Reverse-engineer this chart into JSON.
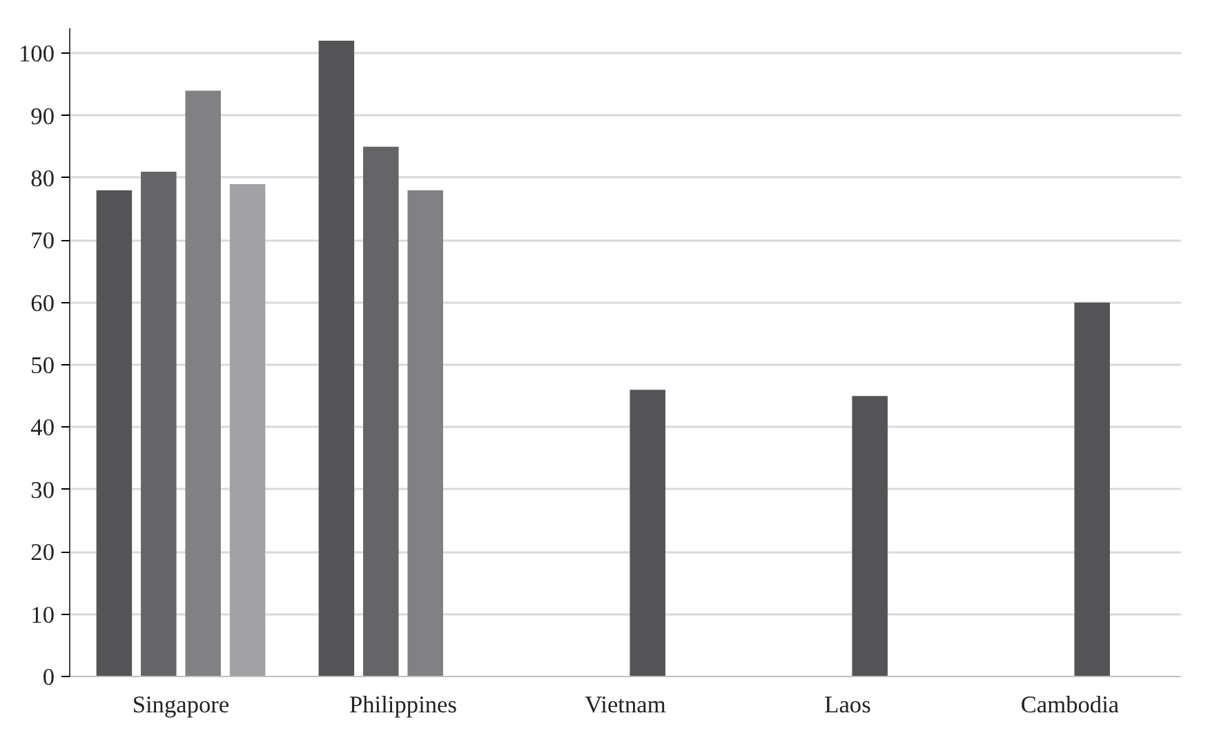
{
  "chart_data": {
    "type": "bar",
    "categories": [
      "Singapore",
      "Philippines",
      "Vietnam",
      "Laos",
      "Cambodia"
    ],
    "series": [
      {
        "color": "#545456",
        "values": [
          78,
          102,
          null,
          null,
          null
        ]
      },
      {
        "color": "#656567",
        "values": [
          81,
          85,
          null,
          null,
          null
        ]
      },
      {
        "color": "#818184",
        "colors": [
          "#818184",
          "#818184",
          "#545456",
          "#545456",
          "#545456"
        ],
        "values": [
          94,
          78,
          46,
          45,
          60
        ]
      },
      {
        "color": "#a2a2a5",
        "values": [
          79,
          null,
          null,
          null,
          null
        ]
      }
    ],
    "ylim": [
      0,
      104
    ],
    "yticks": [
      0,
      10,
      20,
      30,
      40,
      50,
      60,
      70,
      80,
      90,
      100
    ],
    "grid": "y"
  }
}
